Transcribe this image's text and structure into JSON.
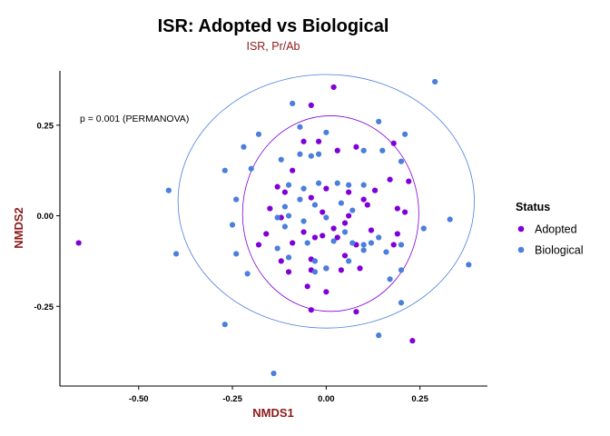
{
  "chart_data": {
    "type": "scatter",
    "title": "ISR: Adopted vs Biological",
    "subtitle": "ISR, Pr/Ab",
    "xlabel": "NMDS1",
    "ylabel": "NMDS2",
    "xlim": [
      -0.71,
      0.43
    ],
    "ylim": [
      -0.47,
      0.4
    ],
    "x_ticks": [
      {
        "value": -0.5,
        "label": "-0.50"
      },
      {
        "value": -0.25,
        "label": "-0.25"
      },
      {
        "value": 0.0,
        "label": "0.00"
      },
      {
        "value": 0.25,
        "label": "0.25"
      }
    ],
    "y_ticks": [
      {
        "value": -0.25,
        "label": "-0.25"
      },
      {
        "value": 0.0,
        "label": "0.00"
      },
      {
        "value": 0.25,
        "label": "0.25"
      }
    ],
    "grid": false,
    "legend": {
      "title": "Status",
      "position": "right"
    },
    "annotation": "p =  0.001 (PERMANOVA)",
    "series": [
      {
        "name": "Adopted",
        "color": "#8000d8",
        "ellipse": {
          "center": [
            0.012,
            0.006
          ],
          "rx": 0.235,
          "ry": 0.27
        },
        "points": [
          [
            -0.66,
            -0.075
          ],
          [
            0.02,
            0.355
          ],
          [
            -0.04,
            0.305
          ],
          [
            -0.06,
            0.205
          ],
          [
            -0.02,
            0.205
          ],
          [
            0.03,
            0.18
          ],
          [
            0.08,
            0.19
          ],
          [
            0.18,
            0.2
          ],
          [
            -0.09,
            0.125
          ],
          [
            0.17,
            0.1
          ],
          [
            0.22,
            0.095
          ],
          [
            -0.13,
            0.08
          ],
          [
            -0.11,
            0.065
          ],
          [
            0.0,
            0.075
          ],
          [
            0.06,
            0.065
          ],
          [
            0.13,
            0.07
          ],
          [
            -0.15,
            0.02
          ],
          [
            -0.04,
            0.05
          ],
          [
            0.1,
            0.045
          ],
          [
            0.19,
            0.02
          ],
          [
            0.21,
            0.01
          ],
          [
            -0.12,
            -0.005
          ],
          [
            -0.01,
            0.01
          ],
          [
            0.06,
            0.0
          ],
          [
            0.11,
            0.03
          ],
          [
            -0.16,
            -0.05
          ],
          [
            -0.06,
            -0.045
          ],
          [
            0.02,
            -0.035
          ],
          [
            0.05,
            -0.02
          ],
          [
            0.12,
            -0.04
          ],
          [
            0.19,
            -0.05
          ],
          [
            -0.18,
            -0.08
          ],
          [
            -0.09,
            -0.075
          ],
          [
            -0.03,
            -0.06
          ],
          [
            -0.01,
            -0.055
          ],
          [
            0.03,
            -0.06
          ],
          [
            0.08,
            -0.08
          ],
          [
            0.18,
            -0.08
          ],
          [
            -0.12,
            -0.125
          ],
          [
            -0.04,
            -0.12
          ],
          [
            0.05,
            -0.11
          ],
          [
            -0.1,
            -0.155
          ],
          [
            -0.04,
            -0.15
          ],
          [
            0.0,
            -0.145
          ],
          [
            0.04,
            -0.15
          ],
          [
            0.09,
            -0.145
          ],
          [
            -0.05,
            -0.195
          ],
          [
            0.0,
            -0.21
          ],
          [
            -0.04,
            -0.26
          ],
          [
            0.08,
            -0.265
          ],
          [
            0.23,
            -0.345
          ]
        ]
      },
      {
        "name": "Biological",
        "color": "#4a7fdc",
        "ellipse": {
          "center": [
            0.0,
            0.04
          ],
          "rx": 0.395,
          "ry": 0.35
        },
        "points": [
          [
            0.29,
            0.37
          ],
          [
            -0.09,
            0.31
          ],
          [
            0.14,
            0.26
          ],
          [
            -0.07,
            0.245
          ],
          [
            0.0,
            0.23
          ],
          [
            -0.18,
            0.225
          ],
          [
            0.21,
            0.225
          ],
          [
            -0.22,
            0.19
          ],
          [
            -0.12,
            0.155
          ],
          [
            -0.07,
            0.17
          ],
          [
            -0.04,
            0.165
          ],
          [
            -0.02,
            0.17
          ],
          [
            0.1,
            0.18
          ],
          [
            0.15,
            0.18
          ],
          [
            0.2,
            0.15
          ],
          [
            -0.27,
            0.125
          ],
          [
            -0.2,
            0.13
          ],
          [
            -0.42,
            0.07
          ],
          [
            -0.1,
            0.085
          ],
          [
            -0.06,
            0.075
          ],
          [
            -0.02,
            0.09
          ],
          [
            0.03,
            0.09
          ],
          [
            0.06,
            0.085
          ],
          [
            0.1,
            0.085
          ],
          [
            -0.24,
            0.045
          ],
          [
            -0.11,
            0.025
          ],
          [
            -0.07,
            0.045
          ],
          [
            -0.03,
            0.03
          ],
          [
            0.04,
            0.035
          ],
          [
            -0.13,
            -0.005
          ],
          [
            -0.1,
            0.0
          ],
          [
            -0.06,
            -0.015
          ],
          [
            0.0,
            -0.005
          ],
          [
            0.07,
            0.015
          ],
          [
            0.33,
            -0.01
          ],
          [
            -0.25,
            -0.025
          ],
          [
            -0.11,
            -0.03
          ],
          [
            0.05,
            -0.045
          ],
          [
            0.1,
            -0.08
          ],
          [
            0.14,
            -0.06
          ],
          [
            0.26,
            -0.035
          ],
          [
            -0.4,
            -0.105
          ],
          [
            -0.13,
            -0.09
          ],
          [
            -0.05,
            -0.075
          ],
          [
            0.02,
            -0.07
          ],
          [
            0.07,
            -0.075
          ],
          [
            0.12,
            -0.075
          ],
          [
            0.2,
            -0.08
          ],
          [
            -0.24,
            -0.105
          ],
          [
            0.1,
            -0.095
          ],
          [
            0.16,
            -0.1
          ],
          [
            -0.03,
            -0.125
          ],
          [
            0.06,
            -0.125
          ],
          [
            -0.1,
            -0.115
          ],
          [
            0.38,
            -0.135
          ],
          [
            -0.21,
            -0.16
          ],
          [
            0.0,
            -0.145
          ],
          [
            0.2,
            -0.15
          ],
          [
            0.17,
            -0.175
          ],
          [
            -0.03,
            -0.155
          ],
          [
            0.2,
            -0.24
          ],
          [
            -0.27,
            -0.3
          ],
          [
            0.14,
            -0.33
          ],
          [
            -0.14,
            -0.435
          ]
        ]
      }
    ]
  }
}
